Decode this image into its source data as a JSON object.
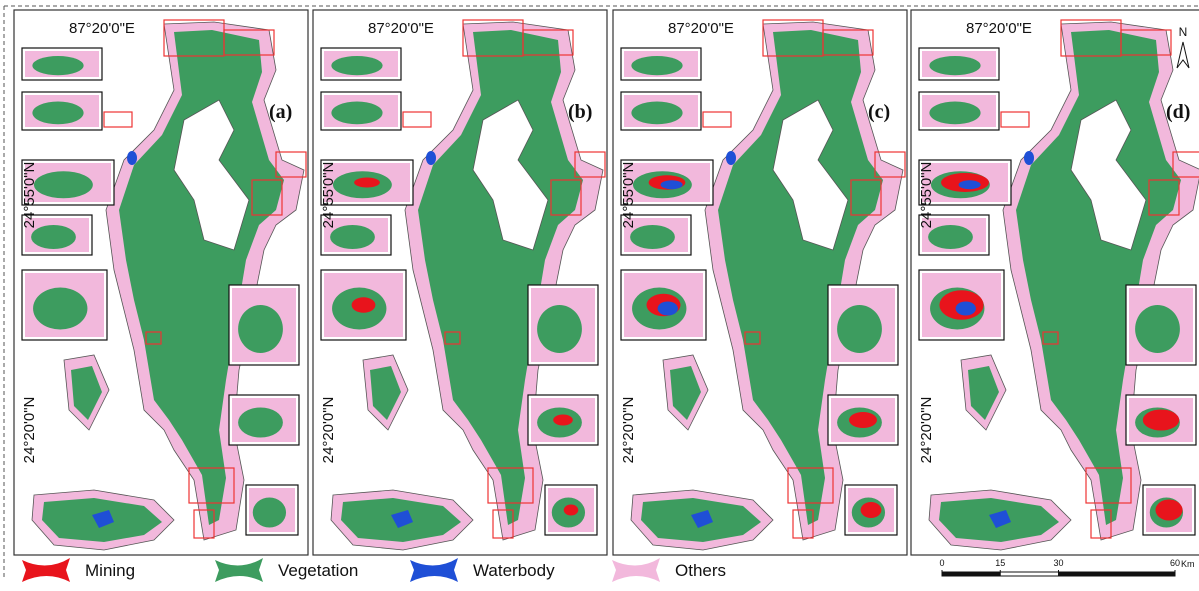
{
  "panels": [
    {
      "label": "(a)",
      "lon_label": "87°20'0\"E",
      "lat_labels": [
        "24°55'0\"N",
        "24°20'0\"N"
      ]
    },
    {
      "label": "(b)",
      "lon_label": "87°20'0\"E",
      "lat_labels": [
        "24°55'0\"N",
        "24°20'0\"N"
      ]
    },
    {
      "label": "(c)",
      "lon_label": "87°20'0\"E",
      "lat_labels": [
        "24°55'0\"N",
        "24°20'0\"N"
      ]
    },
    {
      "label": "(d)",
      "lon_label": "87°20'0\"E",
      "lat_labels": [
        "24°55'0\"N",
        "24°20'0\"N"
      ]
    }
  ],
  "north": "N",
  "legend": [
    {
      "name": "Mining",
      "color": "#e8141c"
    },
    {
      "name": "Vegetation",
      "color": "#3d9c5f"
    },
    {
      "name": "Waterbody",
      "color": "#1f4fd6"
    },
    {
      "name": "Others",
      "color": "#f2b8dc"
    }
  ],
  "scale_bar": {
    "ticks": [
      0,
      15,
      30,
      60
    ],
    "unit": "Km"
  }
}
